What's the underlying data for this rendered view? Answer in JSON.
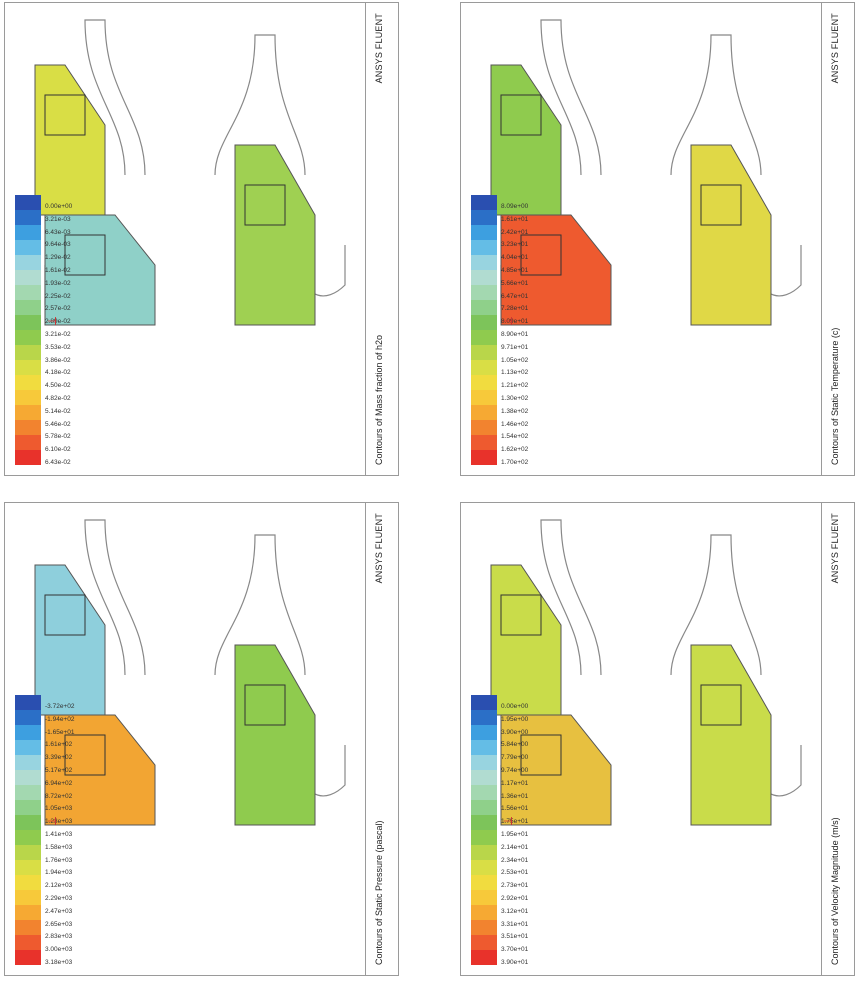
{
  "brand": "ANSYS FLUENT",
  "palette": [
    "#e8322b",
    "#ee5a2f",
    "#f2832f",
    "#f6a933",
    "#f7c93a",
    "#f1dc3f",
    "#d9de45",
    "#b9d64a",
    "#8fcb4e",
    "#7dc45a",
    "#8fd08a",
    "#a3d8b0",
    "#b1dcd1",
    "#98d4e0",
    "#64bde6",
    "#3d9fe0",
    "#2b6fc7",
    "#2a4fb0"
  ],
  "panels": [
    {
      "id": "temperature",
      "caption": "Contours of Static Temperature (c)",
      "ticks": [
        "1.70e+02",
        "1.62e+02",
        "1.54e+02",
        "1.46e+02",
        "1.38e+02",
        "1.30e+02",
        "1.21e+02",
        "1.13e+02",
        "1.05e+02",
        "9.71e+01",
        "8.90e+01",
        "8.09e+01",
        "7.28e+01",
        "6.47e+01",
        "5.66e+01",
        "4.85e+01",
        "4.04e+01",
        "3.23e+01",
        "2.42e+01",
        "1.61e+01",
        "8.09e+00"
      ],
      "fills": [
        "#8fcb4e",
        "#e0d846",
        "#ee5a2f"
      ]
    },
    {
      "id": "velocity",
      "caption": "Contours of Velocity Magnitude (m/s)",
      "ticks": [
        "3.90e+01",
        "3.70e+01",
        "3.51e+01",
        "3.31e+01",
        "3.12e+01",
        "2.92e+01",
        "2.73e+01",
        "2.53e+01",
        "2.34e+01",
        "2.14e+01",
        "1.95e+01",
        "1.75e+01",
        "1.56e+01",
        "1.36e+01",
        "1.17e+01",
        "9.74e+00",
        "7.79e+00",
        "5.84e+00",
        "3.90e+00",
        "1.95e+00",
        "0.00e+00"
      ],
      "fills": [
        "#c9dc4a",
        "#c9dc4a",
        "#e7c040"
      ]
    },
    {
      "id": "h2o",
      "caption": "Contours of Mass fraction of h2o",
      "ticks": [
        "6.43e-02",
        "6.10e-02",
        "5.78e-02",
        "5.46e-02",
        "5.14e-02",
        "4.82e-02",
        "4.50e-02",
        "4.18e-02",
        "3.86e-02",
        "3.53e-02",
        "3.21e-02",
        "2.89e-02",
        "2.57e-02",
        "2.25e-02",
        "1.93e-02",
        "1.61e-02",
        "1.29e-02",
        "9.64e-03",
        "6.43e-03",
        "3.21e-03",
        "0.00e+00"
      ],
      "fills": [
        "#d9de45",
        "#9fd052",
        "#8fd0c8"
      ]
    },
    {
      "id": "pressure",
      "caption": "Contours of Static Pressure (pascal)",
      "ticks": [
        "3.18e+03",
        "3.00e+03",
        "2.83e+03",
        "2.65e+03",
        "2.47e+03",
        "2.29e+03",
        "2.12e+03",
        "1.94e+03",
        "1.76e+03",
        "1.58e+03",
        "1.41e+03",
        "1.23e+03",
        "1.05e+03",
        "8.72e+02",
        "6.94e+02",
        "5.17e+02",
        "3.39e+02",
        "1.61e+02",
        "-1.65e+01",
        "-1.94e+02",
        "-3.72e+02"
      ],
      "fills": [
        "#8ecfdc",
        "#8fcb4e",
        "#f2a533"
      ]
    }
  ]
}
